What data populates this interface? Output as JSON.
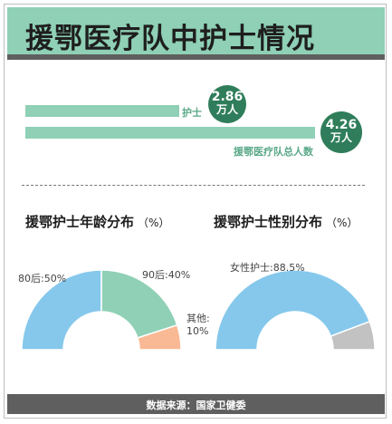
{
  "title": "援鄂医疗队中护士情况",
  "footer": "数据来源：国家卫健委",
  "colors": {
    "mint": "#8fd0b6",
    "dark_green": "#2f7d5a",
    "light_green_text": "#5aa889",
    "blue": "#86c8ec",
    "orange": "#f9b994",
    "gray": "#c2c2c2",
    "bar_dark": "#5f5f5f"
  },
  "summary": {
    "nurses": {
      "label": "护士",
      "value": "2.86",
      "unit": "万人"
    },
    "total": {
      "label": "援鄂医疗队总人数",
      "value": "4.26",
      "unit": "万人"
    }
  },
  "chart_data": [
    {
      "type": "bar",
      "orientation": "horizontal",
      "categories": [
        "护士",
        "援鄂医疗队总人数"
      ],
      "values": [
        2.86,
        4.26
      ],
      "unit": "万人"
    },
    {
      "type": "pie",
      "style": "half-donut",
      "title": "援鄂护士年龄分布",
      "unit_label": "（%）",
      "slices": [
        {
          "label": "80后:50%",
          "value": 50,
          "color": "#86c8ec"
        },
        {
          "label": "90后:40%",
          "value": 40,
          "color": "#8fd0b6"
        },
        {
          "label": "其他:\n10%",
          "value": 10,
          "color": "#f9b994"
        }
      ]
    },
    {
      "type": "pie",
      "style": "half-donut",
      "title": "援鄂护士性别分布",
      "unit_label": "（%）",
      "slices": [
        {
          "label": "女性护士:88.5%",
          "value": 88.5,
          "color": "#86c8ec"
        },
        {
          "value": 11.5,
          "color": "#c2c2c2"
        }
      ]
    }
  ]
}
